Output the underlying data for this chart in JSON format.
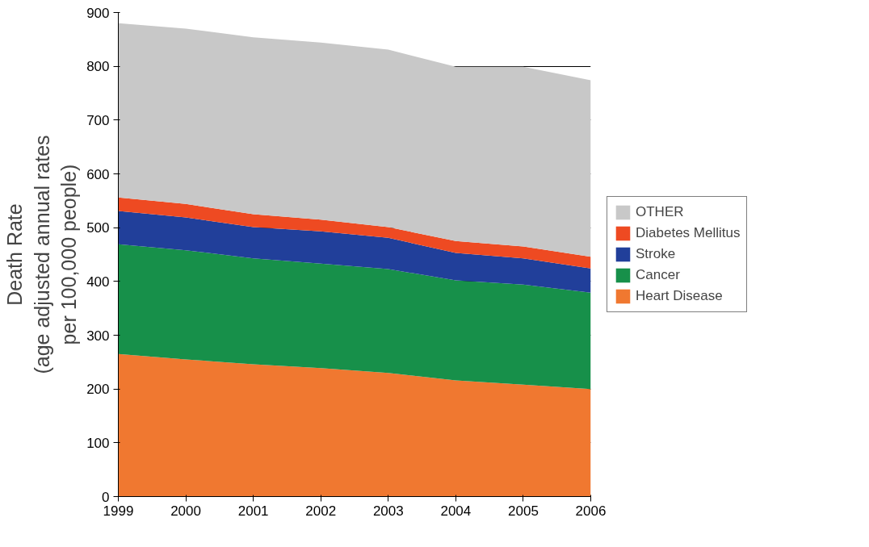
{
  "chart_data": {
    "type": "area",
    "stacked": true,
    "ylabel": "Death Rate\n(age adjusted annual rates\nper 100,000 people)",
    "x": [
      1999,
      2000,
      2001,
      2002,
      2003,
      2004,
      2005,
      2006
    ],
    "series": [
      {
        "name": "Heart Disease",
        "color": "#f07830",
        "values": [
          265,
          255,
          246,
          239,
          230,
          216,
          208,
          200
        ]
      },
      {
        "name": "Cancer",
        "color": "#17904a",
        "values": [
          204,
          203,
          197,
          194,
          193,
          186,
          186,
          179
        ]
      },
      {
        "name": "Stroke",
        "color": "#213f9a",
        "values": [
          62,
          61,
          58,
          60,
          58,
          51,
          49,
          45
        ]
      },
      {
        "name": "Diabetes Mellitus",
        "color": "#ee4a22",
        "values": [
          25,
          25,
          24,
          22,
          20,
          22,
          22,
          22
        ]
      },
      {
        "name": "OTHER",
        "color": "#c8c8c8",
        "values": [
          324,
          326,
          329,
          329,
          330,
          324,
          334,
          328
        ]
      }
    ],
    "xlim": [
      1999,
      2006
    ],
    "xticks": [
      1999,
      2000,
      2001,
      2002,
      2003,
      2004,
      2005,
      2006
    ],
    "ylim": [
      0,
      900
    ],
    "yticks": [
      0,
      100,
      200,
      300,
      400,
      500,
      600,
      700,
      800,
      900
    ],
    "grid": "y",
    "legend": "right"
  }
}
